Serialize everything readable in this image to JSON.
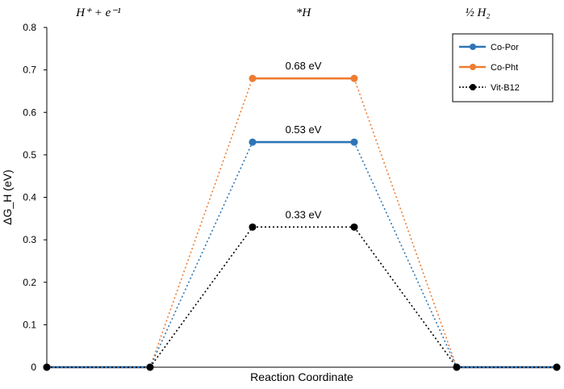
{
  "chart_data": {
    "type": "line",
    "title": "",
    "xlabel": "Reaction Coordinate",
    "ylabel": "ΔG_H (eV)",
    "ylim": [
      0,
      0.8
    ],
    "yticks": [
      0,
      0.1,
      0.2,
      0.3,
      0.4,
      0.5,
      0.6,
      0.7,
      0.8
    ],
    "ytick_labels": [
      "0",
      "0.1",
      "0.2",
      "0.3",
      "0.4",
      "0.5",
      "0.6",
      "0.7",
      "0.8"
    ],
    "grid": false,
    "legend_position": "top-right",
    "state_labels": [
      "H⁺ + e⁻¹",
      "*H",
      "½ H₂"
    ],
    "x": [
      0,
      1,
      2,
      3,
      4,
      5
    ],
    "series": [
      {
        "name": "Co-Por",
        "color": "#2e75b6",
        "line_style": "solid",
        "values": [
          0,
          0,
          0.53,
          0.53,
          0,
          0
        ],
        "label": "0.53 eV"
      },
      {
        "name": "Co-Pht",
        "color": "#ed7d31",
        "line_style": "solid",
        "values": [
          0,
          0,
          0.68,
          0.68,
          0,
          0
        ],
        "label": "0.68 eV"
      },
      {
        "name": "Vit-B12",
        "color": "#000000",
        "line_style": "dotted",
        "values": [
          0,
          0,
          0.33,
          0.33,
          0,
          0
        ],
        "label": "0.33 eV"
      }
    ]
  }
}
